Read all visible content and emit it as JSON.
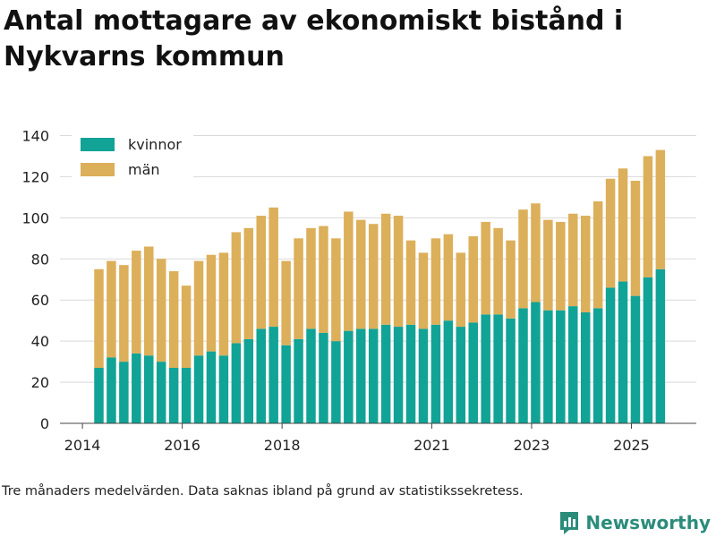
{
  "header": {
    "title": "Antal mottagare av ekonomiskt bistånd i Nykvarns kommun"
  },
  "footer": {
    "note": "Tre månaders medelvärden. Data saknas ibland på grund av statistikssekretess.",
    "brand": "Newsworthy"
  },
  "colors": {
    "kvinnor": "#11a396",
    "man": "#dcaf5a",
    "grid": "#d9d9d9",
    "brand": "#2b8c7a"
  },
  "chart_data": {
    "type": "bar",
    "stacked": true,
    "title": "Antal mottagare av ekonomiskt bistånd i Nykvarns kommun",
    "xlabel": "",
    "ylabel": "",
    "ylim": [
      0,
      145
    ],
    "yticks": [
      0,
      20,
      40,
      60,
      80,
      100,
      120,
      140
    ],
    "xlim": [
      2013.55,
      2026.3
    ],
    "xticks": [
      2014,
      2016,
      2018,
      2021,
      2023,
      2025
    ],
    "legend_position": "top-left",
    "grid": true,
    "x": [
      2014.33,
      2014.58,
      2014.83,
      2015.08,
      2015.33,
      2015.58,
      2015.83,
      2016.08,
      2016.33,
      2016.58,
      2016.83,
      2017.08,
      2017.33,
      2017.58,
      2017.83,
      2018.08,
      2018.33,
      2018.58,
      2018.83,
      2019.08,
      2019.33,
      2019.58,
      2019.83,
      2020.08,
      2020.33,
      2020.58,
      2020.83,
      2021.08,
      2021.33,
      2021.58,
      2021.83,
      2022.08,
      2022.33,
      2022.58,
      2022.83,
      2023.08,
      2023.33,
      2023.58,
      2023.83,
      2024.08,
      2024.33,
      2024.58,
      2024.83,
      2025.08,
      2025.33,
      2025.58
    ],
    "series": [
      {
        "name": "kvinnor",
        "values": [
          27,
          32,
          30,
          34,
          33,
          30,
          27,
          27,
          33,
          35,
          33,
          39,
          41,
          46,
          47,
          38,
          41,
          46,
          44,
          40,
          45,
          46,
          46,
          48,
          47,
          48,
          46,
          48,
          50,
          47,
          49,
          53,
          53,
          51,
          56,
          59,
          55,
          55,
          57,
          54,
          56,
          66,
          69,
          62,
          71,
          75
        ]
      },
      {
        "name": "män",
        "values": [
          48,
          47,
          47,
          50,
          53,
          50,
          47,
          40,
          46,
          47,
          50,
          54,
          54,
          55,
          58,
          41,
          49,
          49,
          52,
          50,
          58,
          53,
          51,
          54,
          54,
          41,
          37,
          42,
          42,
          36,
          42,
          45,
          42,
          38,
          48,
          48,
          44,
          43,
          45,
          47,
          52,
          53,
          55,
          56,
          59,
          58
        ]
      }
    ]
  }
}
